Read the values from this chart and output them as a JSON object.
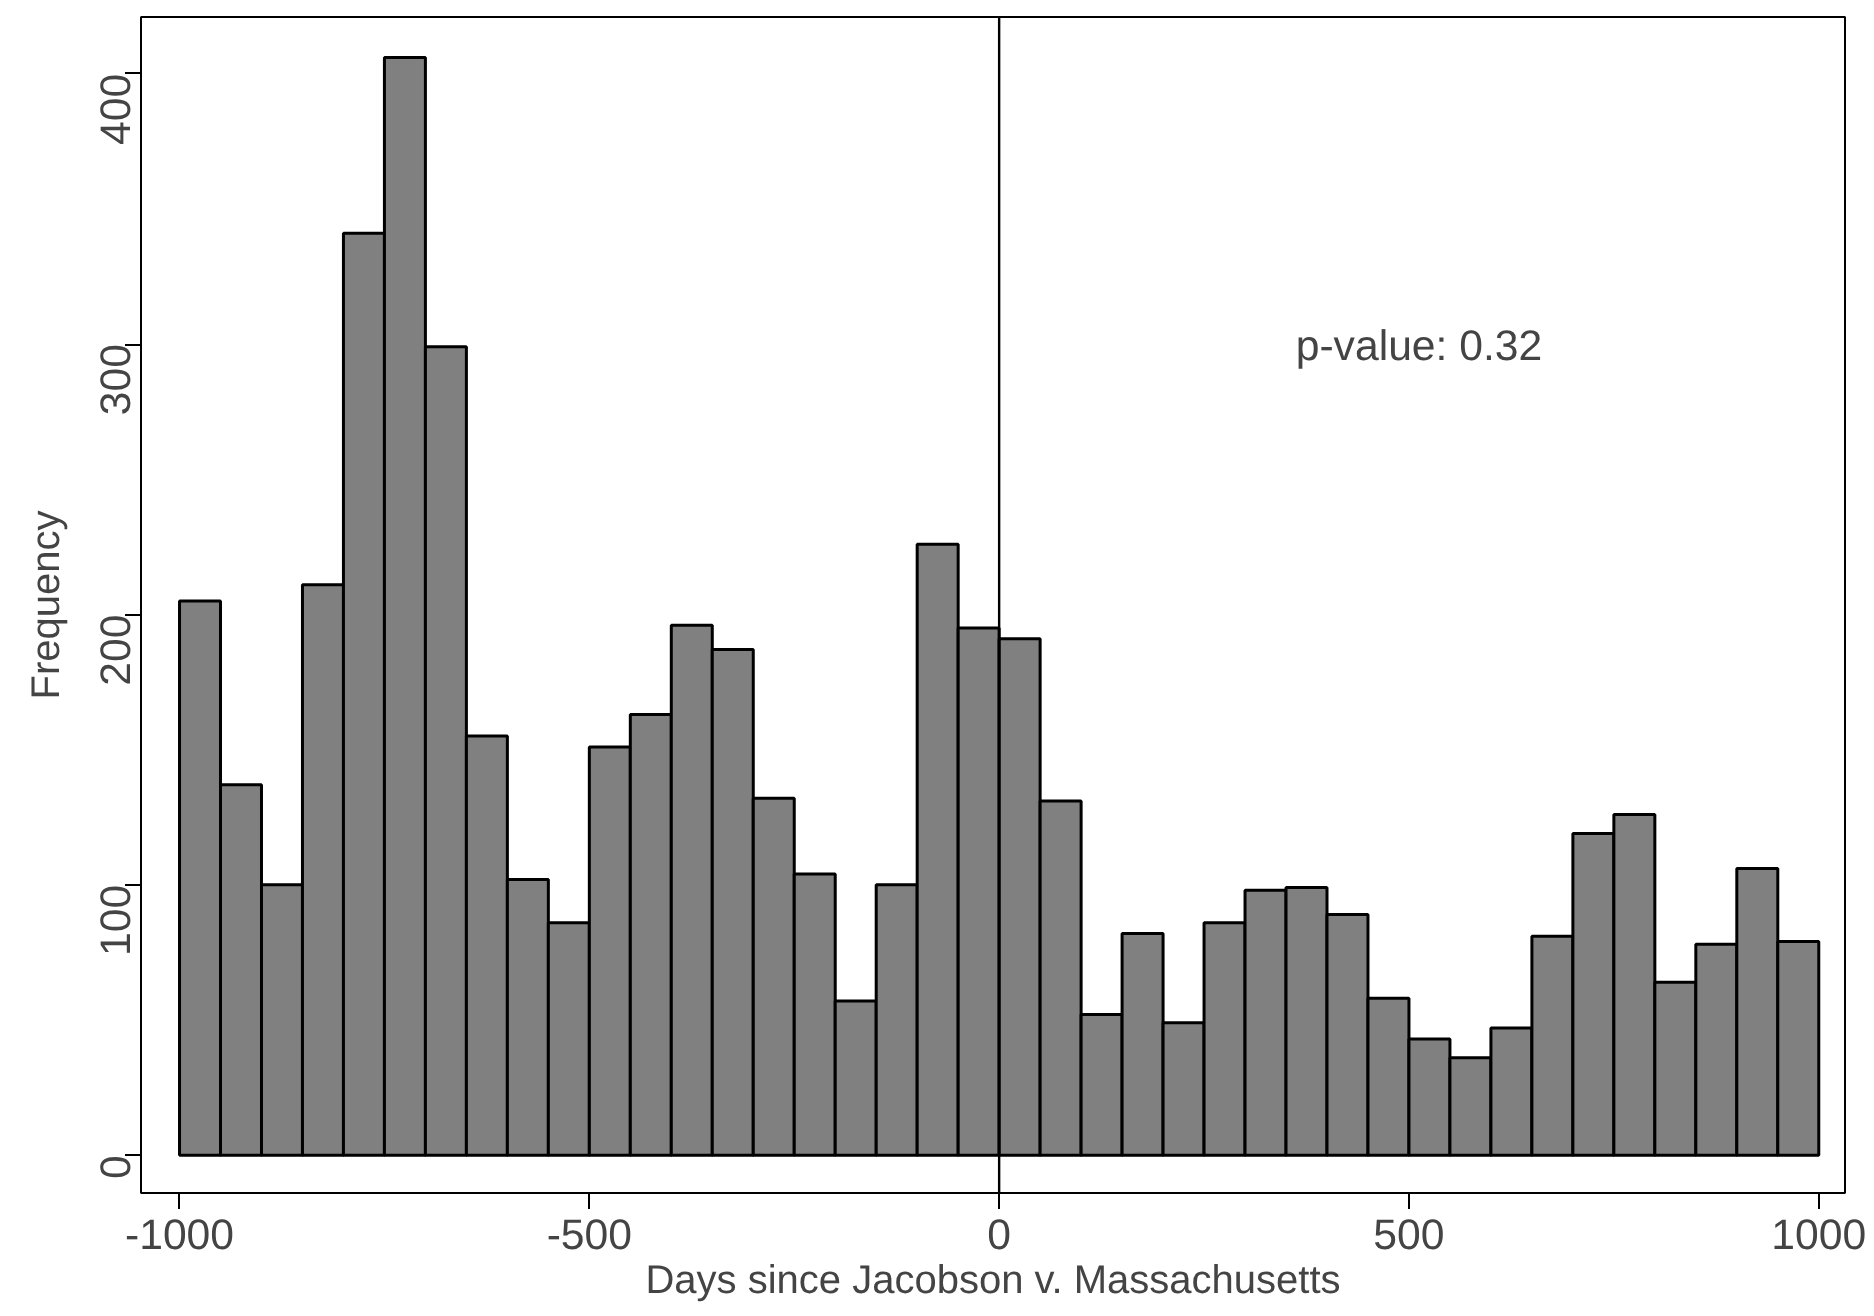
{
  "chart_data": {
    "type": "histogram",
    "xlabel": "Days since Jacobson v. Massachusetts",
    "ylabel": "Frequency",
    "bins": [
      -1000,
      -950,
      -900,
      -850,
      -800,
      -750,
      -700,
      -650,
      -600,
      -550,
      -500,
      -450,
      -400,
      -350,
      -300,
      -250,
      -200,
      -150,
      -100,
      -50,
      0,
      50,
      100,
      150,
      200,
      250,
      300,
      350,
      400,
      450,
      500,
      550,
      600,
      650,
      700,
      750,
      800,
      850,
      900,
      950,
      1000
    ],
    "values": [
      205,
      137,
      100,
      211,
      341,
      406,
      299,
      155,
      102,
      86,
      151,
      163,
      196,
      187,
      132,
      104,
      57,
      100,
      226,
      195,
      191,
      131,
      52,
      82,
      49,
      86,
      98,
      99,
      89,
      58,
      43,
      36,
      47,
      81,
      119,
      126,
      64,
      78,
      106,
      79
    ],
    "color": "#808080",
    "xlim": [
      -1047,
      1032
    ],
    "ylim": [
      -14,
      421
    ],
    "xticks": [
      -1000,
      -500,
      0,
      500,
      1000
    ],
    "yticks": [
      0,
      100,
      200,
      300,
      400
    ],
    "grid": false,
    "ref_lines": [
      {
        "axis": "x",
        "value": 0,
        "color": "#000000"
      }
    ],
    "annotations": [
      "p-value: 0.32"
    ]
  }
}
